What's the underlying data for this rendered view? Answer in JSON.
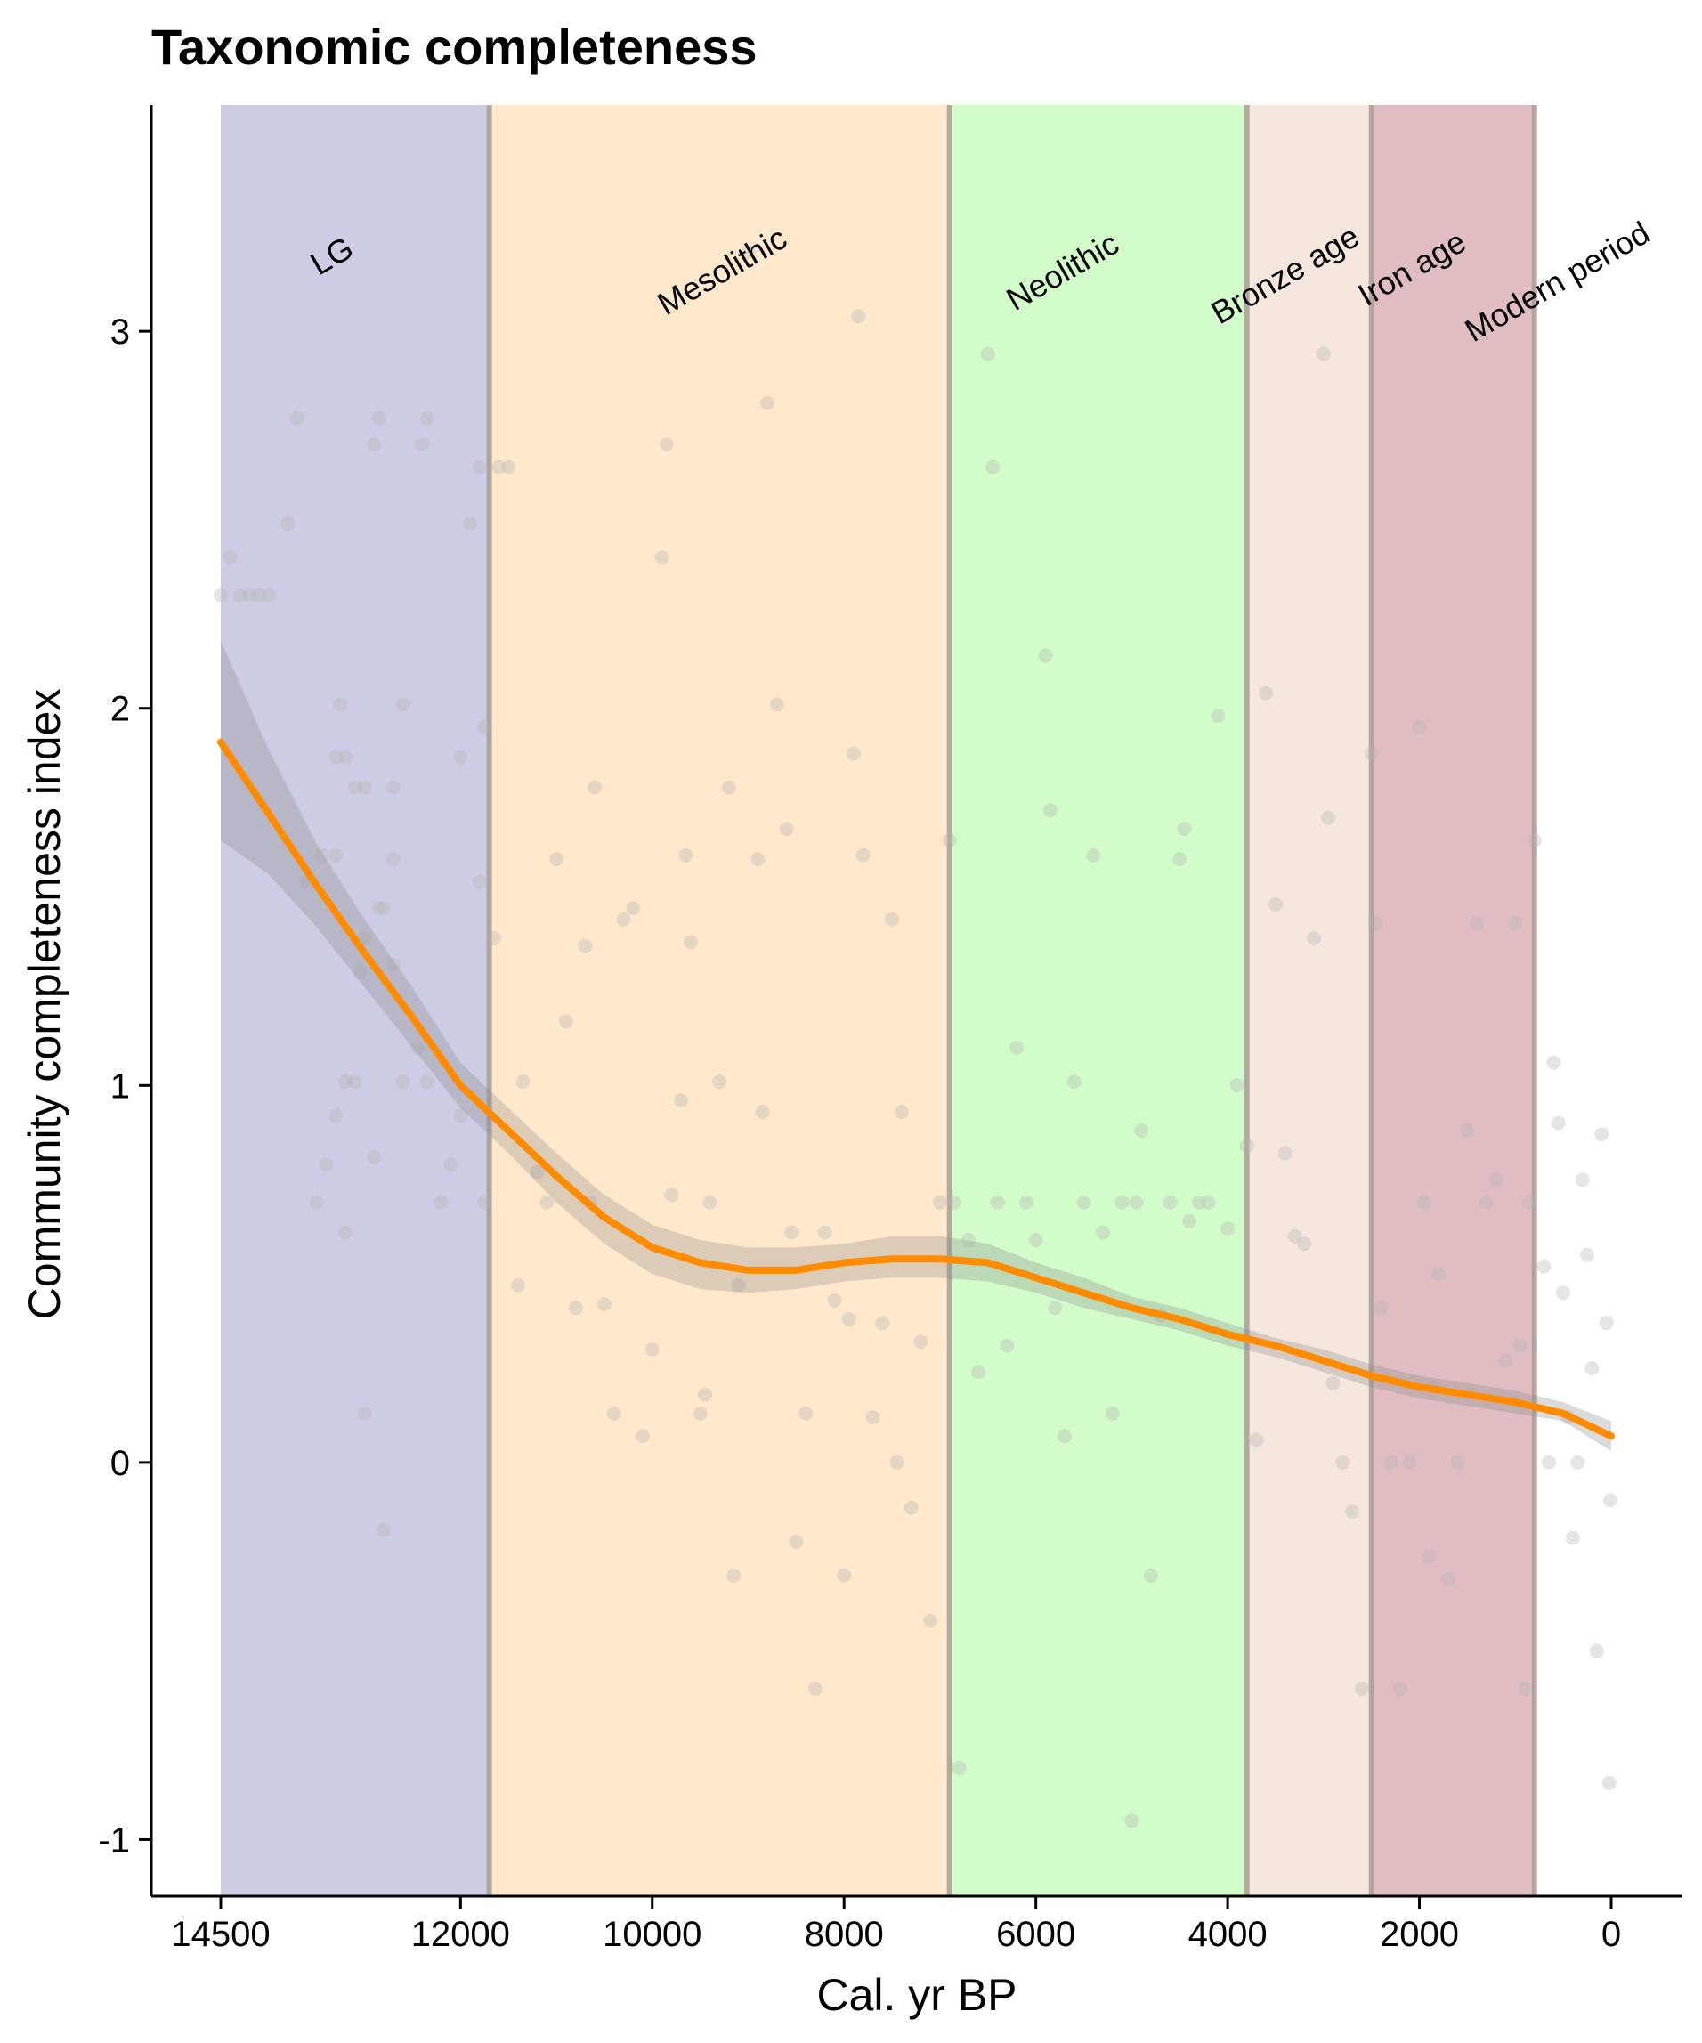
{
  "chart_data": {
    "type": "scatter",
    "title": "Taxonomic completeness",
    "xlabel": "Cal. yr BP",
    "ylabel": "Community completeness index",
    "xlim": [
      14500,
      0
    ],
    "x_reversed": true,
    "ylim": [
      -1.15,
      3.6
    ],
    "x_ticks": [
      14500,
      12000,
      10000,
      8000,
      6000,
      4000,
      2000,
      0
    ],
    "y_ticks": [
      -1,
      0,
      1,
      2,
      3
    ],
    "grid": false,
    "legend": "none",
    "periods": [
      {
        "name": "LG",
        "start": 14500,
        "end": 11700,
        "color": "#cccce4"
      },
      {
        "name": "Mesolithic",
        "start": 11700,
        "end": 6900,
        "color": "#ffe8cc"
      },
      {
        "name": "Neolithic",
        "start": 6900,
        "end": 3800,
        "color": "#d2fcca"
      },
      {
        "name": "Bronze age",
        "start": 3800,
        "end": 2500,
        "color": "#f5e7de"
      },
      {
        "name": "Iron age",
        "start": 2500,
        "end": 800,
        "color": "#dfbdc0"
      },
      {
        "name": "Modern period",
        "start": 800,
        "end": 0,
        "color": "#ffffff"
      }
    ],
    "period_boundary_color": "#a89c96",
    "smooth_color": "#ff8c00",
    "band_color": "#888888",
    "point_color": "#b4b4b4",
    "smooth": {
      "x": [
        14500,
        14000,
        13500,
        13000,
        12500,
        12000,
        11500,
        11000,
        10500,
        10000,
        9500,
        9000,
        8500,
        8000,
        7500,
        7000,
        6500,
        6000,
        5500,
        5000,
        4500,
        4000,
        3500,
        3000,
        2500,
        2000,
        1500,
        1000,
        500,
        0
      ],
      "y": [
        1.91,
        1.72,
        1.53,
        1.35,
        1.18,
        1.0,
        0.88,
        0.76,
        0.65,
        0.57,
        0.53,
        0.51,
        0.51,
        0.53,
        0.54,
        0.54,
        0.53,
        0.49,
        0.45,
        0.41,
        0.38,
        0.34,
        0.31,
        0.27,
        0.23,
        0.2,
        0.18,
        0.16,
        0.13,
        0.07
      ],
      "lower": [
        1.65,
        1.56,
        1.42,
        1.26,
        1.1,
        0.94,
        0.82,
        0.69,
        0.58,
        0.5,
        0.46,
        0.45,
        0.46,
        0.48,
        0.49,
        0.49,
        0.48,
        0.45,
        0.41,
        0.38,
        0.35,
        0.31,
        0.28,
        0.24,
        0.2,
        0.17,
        0.15,
        0.13,
        0.11,
        0.03
      ],
      "upper": [
        2.18,
        1.89,
        1.64,
        1.44,
        1.26,
        1.06,
        0.94,
        0.82,
        0.71,
        0.63,
        0.59,
        0.57,
        0.57,
        0.58,
        0.6,
        0.6,
        0.58,
        0.53,
        0.49,
        0.44,
        0.41,
        0.37,
        0.33,
        0.3,
        0.26,
        0.23,
        0.21,
        0.19,
        0.16,
        0.11
      ]
    },
    "points": [
      [
        14500,
        2.3
      ],
      [
        14400,
        2.4
      ],
      [
        14300,
        2.3
      ],
      [
        14200,
        2.3
      ],
      [
        14100,
        2.3
      ],
      [
        14000,
        2.3
      ],
      [
        13800,
        2.49
      ],
      [
        13700,
        2.77
      ],
      [
        13300,
        1.87
      ],
      [
        13250,
        2.01
      ],
      [
        13200,
        1.87
      ],
      [
        13100,
        1.79
      ],
      [
        13000,
        1.79
      ],
      [
        12900,
        2.7
      ],
      [
        12850,
        2.77
      ],
      [
        12700,
        1.79
      ],
      [
        12600,
        2.01
      ],
      [
        12400,
        2.7
      ],
      [
        12350,
        2.77
      ],
      [
        12000,
        1.87
      ],
      [
        11900,
        2.49
      ],
      [
        11800,
        2.64
      ],
      [
        11750,
        1.95
      ],
      [
        11600,
        2.64
      ],
      [
        11650,
        1.39
      ],
      [
        13500,
        0.69
      ],
      [
        13400,
        0.79
      ],
      [
        13300,
        0.92
      ],
      [
        13200,
        1.01
      ],
      [
        13100,
        1.01
      ],
      [
        12900,
        0.81
      ],
      [
        13600,
        1.54
      ],
      [
        13450,
        1.61
      ],
      [
        13300,
        1.61
      ],
      [
        13000,
        1.39
      ],
      [
        12850,
        1.47
      ],
      [
        12700,
        1.6
      ],
      [
        12600,
        1.01
      ],
      [
        12450,
        1.1
      ],
      [
        12350,
        1.01
      ],
      [
        12200,
        0.69
      ],
      [
        12100,
        0.79
      ],
      [
        12000,
        0.92
      ],
      [
        11800,
        1.54
      ],
      [
        11750,
        0.69
      ],
      [
        13200,
        0.61
      ],
      [
        13000,
        0.13
      ],
      [
        12800,
        -0.18
      ],
      [
        13050,
        1.3
      ],
      [
        12800,
        1.47
      ],
      [
        12700,
        1.32
      ],
      [
        11500,
        2.64
      ],
      [
        11400,
        0.47
      ],
      [
        11350,
        1.01
      ],
      [
        11200,
        0.77
      ],
      [
        11100,
        0.69
      ],
      [
        11000,
        1.6
      ],
      [
        10900,
        1.17
      ],
      [
        10800,
        0.41
      ],
      [
        10700,
        1.37
      ],
      [
        10650,
        0.69
      ],
      [
        10600,
        1.79
      ],
      [
        10500,
        0.42
      ],
      [
        10400,
        0.13
      ],
      [
        10300,
        1.44
      ],
      [
        10200,
        1.47
      ],
      [
        10100,
        0.07
      ],
      [
        10000,
        0.3
      ],
      [
        9900,
        2.4
      ],
      [
        9850,
        2.7
      ],
      [
        9800,
        0.71
      ],
      [
        9700,
        0.96
      ],
      [
        9650,
        1.61
      ],
      [
        9600,
        1.38
      ],
      [
        9500,
        0.13
      ],
      [
        9450,
        0.18
      ],
      [
        9400,
        0.69
      ],
      [
        9300,
        1.01
      ],
      [
        9200,
        1.79
      ],
      [
        9150,
        -0.3
      ],
      [
        9100,
        0.47
      ],
      [
        9000,
        3.21
      ],
      [
        8900,
        1.6
      ],
      [
        8850,
        0.93
      ],
      [
        8800,
        2.81
      ],
      [
        8700,
        2.01
      ],
      [
        8600,
        1.68
      ],
      [
        8550,
        0.61
      ],
      [
        8500,
        -0.21
      ],
      [
        8400,
        0.13
      ],
      [
        8300,
        -0.6
      ],
      [
        8200,
        0.61
      ],
      [
        8100,
        0.43
      ],
      [
        8000,
        -0.3
      ],
      [
        7950,
        0.38
      ],
      [
        7900,
        1.88
      ],
      [
        7850,
        3.04
      ],
      [
        7800,
        1.61
      ],
      [
        7700,
        0.12
      ],
      [
        7600,
        0.37
      ],
      [
        7500,
        1.44
      ],
      [
        7450,
        0.0
      ],
      [
        7400,
        0.93
      ],
      [
        7300,
        -0.12
      ],
      [
        7200,
        0.32
      ],
      [
        7100,
        -0.42
      ],
      [
        7000,
        0.69
      ],
      [
        6900,
        1.65
      ],
      [
        6850,
        0.69
      ],
      [
        6800,
        -0.81
      ],
      [
        6700,
        0.59
      ],
      [
        6600,
        0.24
      ],
      [
        6500,
        2.94
      ],
      [
        6450,
        2.64
      ],
      [
        6400,
        0.69
      ],
      [
        6300,
        0.31
      ],
      [
        6200,
        1.1
      ],
      [
        6100,
        0.69
      ],
      [
        6000,
        0.59
      ],
      [
        5900,
        2.14
      ],
      [
        5850,
        1.73
      ],
      [
        5800,
        0.41
      ],
      [
        5700,
        0.07
      ],
      [
        5600,
        1.01
      ],
      [
        5500,
        0.69
      ],
      [
        5400,
        1.61
      ],
      [
        5300,
        0.61
      ],
      [
        5200,
        0.13
      ],
      [
        5100,
        0.69
      ],
      [
        5000,
        -0.95
      ],
      [
        4950,
        0.69
      ],
      [
        4900,
        0.88
      ],
      [
        4800,
        -0.3
      ],
      [
        4700,
        0.39
      ],
      [
        4600,
        0.69
      ],
      [
        4500,
        1.6
      ],
      [
        4450,
        1.68
      ],
      [
        4400,
        0.64
      ],
      [
        4300,
        0.69
      ],
      [
        4200,
        0.69
      ],
      [
        4100,
        1.98
      ],
      [
        4000,
        0.62
      ],
      [
        3900,
        1.0
      ],
      [
        3800,
        0.84
      ],
      [
        3700,
        0.06
      ],
      [
        3600,
        2.04
      ],
      [
        3500,
        1.48
      ],
      [
        3400,
        0.82
      ],
      [
        3300,
        0.6
      ],
      [
        3200,
        0.58
      ],
      [
        3100,
        1.39
      ],
      [
        3000,
        2.94
      ],
      [
        2950,
        1.71
      ],
      [
        2900,
        0.21
      ],
      [
        2800,
        0.0
      ],
      [
        2700,
        -0.13
      ],
      [
        2600,
        -0.6
      ],
      [
        2500,
        1.88
      ],
      [
        2450,
        1.43
      ],
      [
        2400,
        0.41
      ],
      [
        2300,
        0.0
      ],
      [
        2200,
        -0.6
      ],
      [
        2100,
        0.0
      ],
      [
        2000,
        1.95
      ],
      [
        1950,
        0.69
      ],
      [
        1900,
        -0.25
      ],
      [
        1850,
        0.2
      ],
      [
        1800,
        0.5
      ],
      [
        1700,
        -0.31
      ],
      [
        1600,
        0.0
      ],
      [
        1500,
        0.88
      ],
      [
        1400,
        1.43
      ],
      [
        1300,
        0.69
      ],
      [
        1200,
        0.75
      ],
      [
        1100,
        0.27
      ],
      [
        1000,
        1.43
      ],
      [
        950,
        0.31
      ],
      [
        900,
        -0.6
      ],
      [
        850,
        0.69
      ],
      [
        800,
        1.65
      ],
      [
        700,
        0.52
      ],
      [
        650,
        0.0
      ],
      [
        600,
        1.06
      ],
      [
        550,
        0.9
      ],
      [
        500,
        0.45
      ],
      [
        450,
        0.12
      ],
      [
        400,
        -0.2
      ],
      [
        350,
        0.0
      ],
      [
        300,
        0.75
      ],
      [
        250,
        0.55
      ],
      [
        200,
        0.25
      ],
      [
        150,
        -0.5
      ],
      [
        100,
        0.87
      ],
      [
        50,
        0.37
      ],
      [
        20,
        -0.85
      ],
      [
        10,
        -0.1
      ]
    ]
  }
}
